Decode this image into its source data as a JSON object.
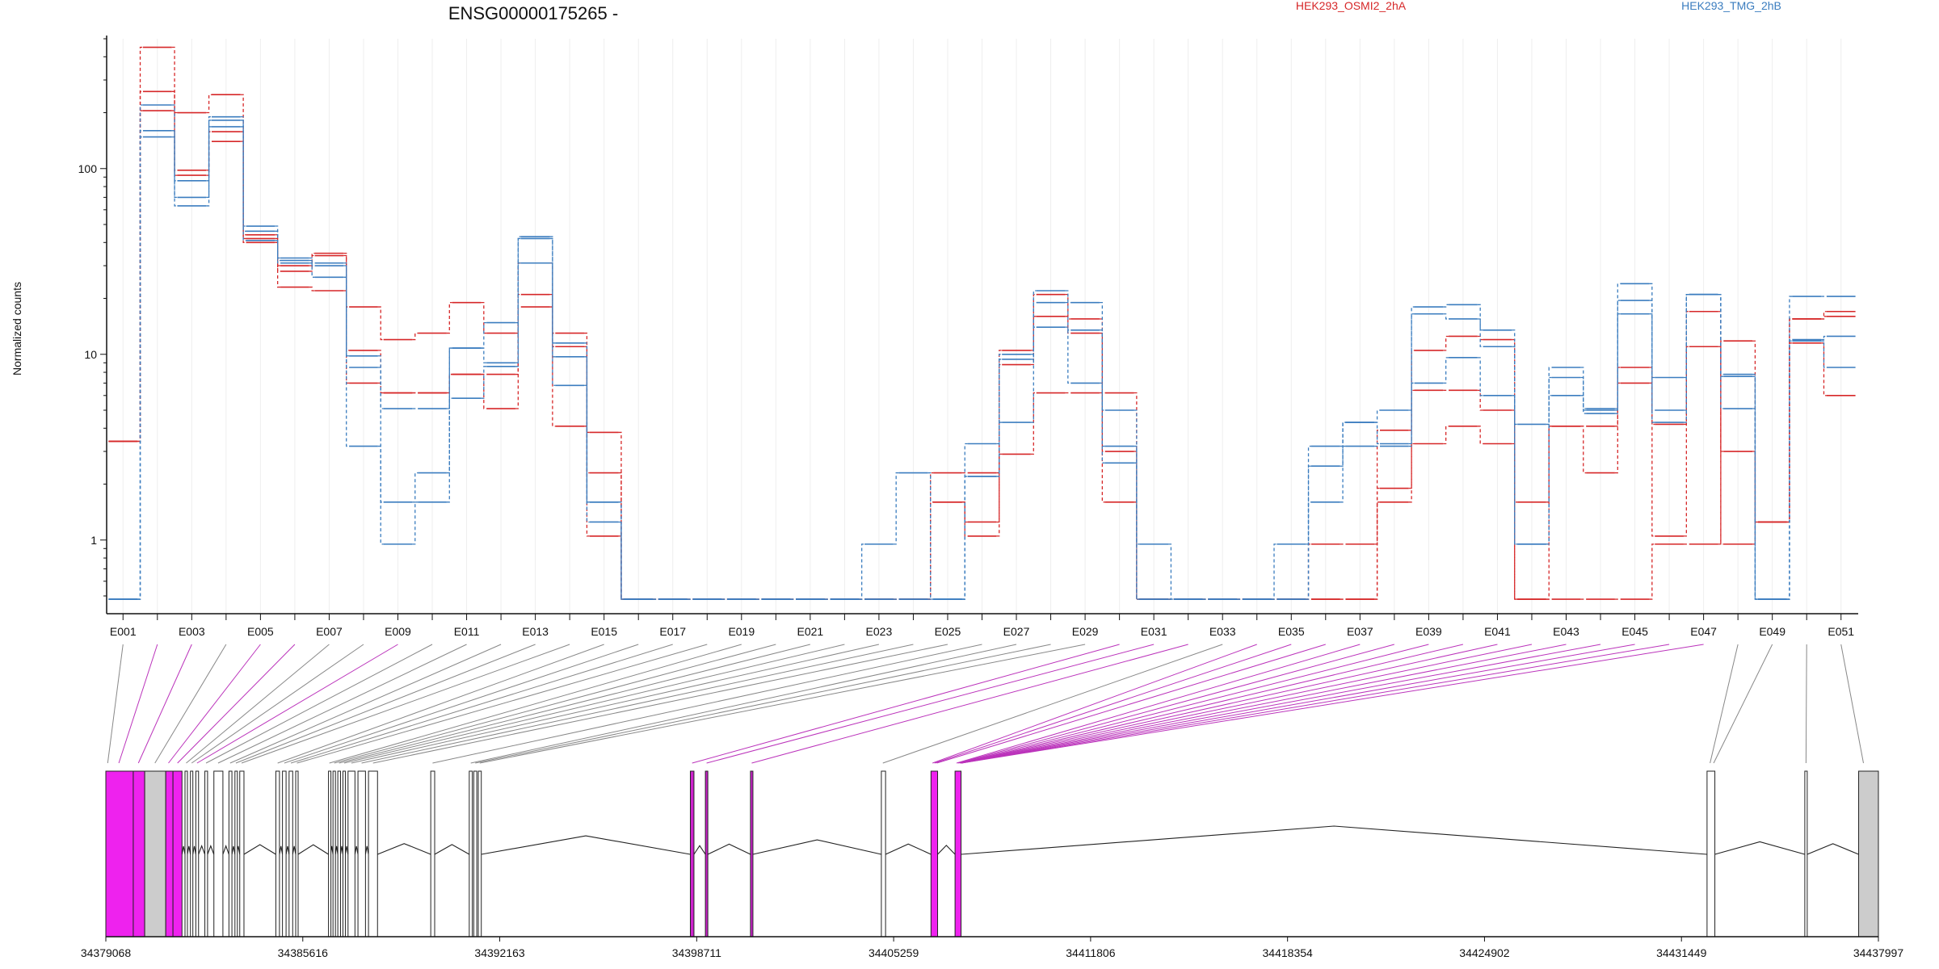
{
  "chart_data": {
    "type": "line",
    "title": "ENSG00000175265 -",
    "ylabel": "Normalized counts",
    "yscale": "log",
    "y_ticks": [
      {
        "value": 1,
        "label": "1"
      },
      {
        "value": 10,
        "label": "10"
      },
      {
        "value": 100,
        "label": "100"
      }
    ],
    "ylim": [
      0.5,
      500
    ],
    "exons": [
      "E001",
      "E002",
      "E003",
      "E004",
      "E005",
      "E006",
      "E007",
      "E008",
      "E009",
      "E010",
      "E011",
      "E012",
      "E013",
      "E014",
      "E015",
      "E016",
      "E017",
      "E018",
      "E019",
      "E020",
      "E021",
      "E022",
      "E023",
      "E024",
      "E025",
      "E026",
      "E027",
      "E028",
      "E029",
      "E030",
      "E031",
      "E032",
      "E033",
      "E034",
      "E035",
      "E036",
      "E037",
      "E038",
      "E039",
      "E040",
      "E041",
      "E042",
      "E043",
      "E044",
      "E045",
      "E046",
      "E047",
      "E048",
      "E049",
      "E050",
      "E051"
    ],
    "exon_labels": [
      "E001",
      "E003",
      "E005",
      "E007",
      "E009",
      "E011",
      "E013",
      "E015",
      "E017",
      "E019",
      "E021",
      "E023",
      "E025",
      "E027",
      "E029",
      "E031",
      "E033",
      "E035",
      "E037",
      "E039",
      "E041",
      "E043",
      "E045",
      "E047",
      "E049",
      "E051"
    ],
    "legend": [
      {
        "name": "HEK293_OSMI2_2hA",
        "color": "#d62728"
      },
      {
        "name": "HEK293_TMG_2hB",
        "color": "#3b7dbf"
      }
    ],
    "series": [
      {
        "group": "OSMI2",
        "color": "#d62728",
        "values": [
          3.4,
          450,
          200,
          250,
          42,
          23,
          22,
          18,
          12,
          13,
          19,
          13,
          21,
          13,
          3.8,
          0.48,
          0.48,
          0.48,
          0.48,
          0.48,
          0.48,
          0.48,
          0.48,
          0.48,
          2.3,
          2.3,
          10.5,
          21,
          15.5,
          6.2,
          0.48,
          0.48,
          0.48,
          0.48,
          0.48,
          0.48,
          0.48,
          3.9,
          10.5,
          12.5,
          12,
          0.48,
          0.48,
          0.48,
          0.48,
          0.95,
          0.95,
          11.8,
          1.25,
          15.5,
          17
        ]
      },
      {
        "group": "OSMI2",
        "color": "#d62728",
        "values": [
          3.4,
          260,
          98,
          158,
          44,
          30,
          35,
          10.5,
          6.2,
          6.2,
          7.8,
          7.8,
          31,
          11,
          1.05,
          0.48,
          0.48,
          0.48,
          0.48,
          0.48,
          0.48,
          0.48,
          0.48,
          0.48,
          1.6,
          1.05,
          2.9,
          6.2,
          6.2,
          1.6,
          0.48,
          0.48,
          0.48,
          0.48,
          0.48,
          0.95,
          0.95,
          1.6,
          3.3,
          4.1,
          3.3,
          1.6,
          4.1,
          2.3,
          8.5,
          1.05,
          17,
          0.95,
          1.25,
          11.5,
          6
        ]
      },
      {
        "group": "OSMI2",
        "color": "#d62728",
        "values": [
          3.4,
          205,
          92,
          140,
          40,
          28,
          34,
          7.0,
          6.2,
          6.2,
          7.8,
          5.1,
          18,
          4.1,
          2.3,
          0.48,
          0.48,
          0.48,
          0.48,
          0.48,
          0.48,
          0.48,
          0.48,
          0.48,
          1.6,
          1.25,
          8.8,
          16,
          13,
          3.0,
          0.48,
          0.48,
          0.48,
          0.48,
          0.48,
          0.48,
          0.48,
          1.9,
          6.4,
          6.4,
          5.0,
          0.48,
          4.1,
          4.1,
          7.0,
          4.2,
          11,
          3.0,
          1.25,
          15.5,
          16
        ]
      },
      {
        "group": "TMG",
        "color": "#3b7dbf",
        "values": [
          0.48,
          220,
          63,
          190,
          46,
          32,
          30,
          3.2,
          0.95,
          1.6,
          10.8,
          9,
          43,
          6.8,
          1.6,
          0.48,
          0.48,
          0.48,
          0.48,
          0.48,
          0.48,
          0.48,
          0.95,
          2.3,
          0.48,
          3.3,
          10,
          22,
          19,
          3.2,
          0.95,
          0.48,
          0.48,
          0.48,
          0.95,
          3.2,
          4.3,
          5.0,
          18,
          18.5,
          13.5,
          4.2,
          8.5,
          5.1,
          24,
          7.5,
          21,
          5.1,
          0.48,
          12,
          8.5
        ]
      },
      {
        "group": "TMG",
        "color": "#3b7dbf",
        "values": [
          0.48,
          148,
          70,
          182,
          49,
          33,
          26,
          8.5,
          5.1,
          5.1,
          10.8,
          14.8,
          31,
          9.7,
          1.25,
          0.48,
          0.48,
          0.48,
          0.48,
          0.48,
          0.48,
          0.48,
          0.48,
          0.48,
          0.48,
          2.2,
          4.3,
          14,
          7.0,
          5.0,
          0.48,
          0.48,
          0.48,
          0.48,
          0.48,
          1.6,
          4.3,
          3.3,
          7.0,
          9.6,
          6.0,
          0.95,
          6.0,
          5.0,
          19.5,
          4.3,
          21,
          7.8,
          0.48,
          11.8,
          12.5
        ]
      },
      {
        "group": "TMG",
        "color": "#3b7dbf",
        "values": [
          0.48,
          160,
          86,
          168,
          41,
          31,
          31,
          9.8,
          1.6,
          2.3,
          5.8,
          8.6,
          42,
          11.5,
          1.6,
          0.48,
          0.48,
          0.48,
          0.48,
          0.48,
          0.48,
          0.48,
          0.48,
          0.48,
          0.48,
          2.2,
          9.4,
          19,
          13.5,
          2.6,
          0.48,
          0.48,
          0.48,
          0.48,
          0.48,
          2.5,
          3.2,
          3.2,
          16.5,
          15.5,
          11,
          0.95,
          7.5,
          4.8,
          16.5,
          5.0,
          21,
          7.6,
          0.48,
          20.5,
          20.5
        ]
      }
    ],
    "genomic_axis": {
      "start": 34379068,
      "end": 34437997,
      "tick_labels": [
        "34379068",
        "34385616",
        "34392163",
        "34398711",
        "34405259",
        "34411806",
        "34418354",
        "34424902",
        "34431449",
        "34437997"
      ]
    },
    "gene_model": [
      {
        "start": 34379068,
        "end": 34379980,
        "fill": "#ee22ee"
      },
      {
        "start": 34379980,
        "end": 34380360,
        "fill": "#ee22ee"
      },
      {
        "start": 34380360,
        "end": 34381060,
        "fill": "#cccccc"
      },
      {
        "start": 34381060,
        "end": 34381300,
        "fill": "#ee22ee"
      },
      {
        "start": 34381300,
        "end": 34381600,
        "fill": "#ee22ee"
      },
      {
        "start": 34381700,
        "end": 34381780,
        "fill": "#ffffff"
      },
      {
        "start": 34381880,
        "end": 34381960,
        "fill": "#ffffff"
      },
      {
        "start": 34382060,
        "end": 34382150,
        "fill": "#ffffff"
      },
      {
        "start": 34382360,
        "end": 34382450,
        "fill": "#ffffff"
      },
      {
        "start": 34382660,
        "end": 34382960,
        "fill": "#ffffff"
      },
      {
        "start": 34383160,
        "end": 34383260,
        "fill": "#ffffff"
      },
      {
        "start": 34383360,
        "end": 34383420,
        "fill": "#ffffff"
      },
      {
        "start": 34383520,
        "end": 34383660,
        "fill": "#ffffff"
      },
      {
        "start": 34384720,
        "end": 34384840,
        "fill": "#ffffff"
      },
      {
        "start": 34384940,
        "end": 34385060,
        "fill": "#ffffff"
      },
      {
        "start": 34385160,
        "end": 34385280,
        "fill": "#ffffff"
      },
      {
        "start": 34385380,
        "end": 34385460,
        "fill": "#ffffff"
      },
      {
        "start": 34386470,
        "end": 34386540,
        "fill": "#ffffff"
      },
      {
        "start": 34386620,
        "end": 34386700,
        "fill": "#ffffff"
      },
      {
        "start": 34386780,
        "end": 34386870,
        "fill": "#ffffff"
      },
      {
        "start": 34386950,
        "end": 34387030,
        "fill": "#ffffff"
      },
      {
        "start": 34387120,
        "end": 34387350,
        "fill": "#ffffff"
      },
      {
        "start": 34387450,
        "end": 34387700,
        "fill": "#ffffff"
      },
      {
        "start": 34387800,
        "end": 34388100,
        "fill": "#ffffff"
      },
      {
        "start": 34389870,
        "end": 34390000,
        "fill": "#ffffff"
      },
      {
        "start": 34391150,
        "end": 34391250,
        "fill": "#ffffff"
      },
      {
        "start": 34391300,
        "end": 34391400,
        "fill": "#ffffff"
      },
      {
        "start": 34391450,
        "end": 34391550,
        "fill": "#ffffff"
      },
      {
        "start": 34398500,
        "end": 34398620,
        "fill": "#cc22cc"
      },
      {
        "start": 34399000,
        "end": 34399080,
        "fill": "#cc22cc"
      },
      {
        "start": 34400500,
        "end": 34400580,
        "fill": "#cc22cc"
      },
      {
        "start": 34404850,
        "end": 34404990,
        "fill": "#ffffff"
      },
      {
        "start": 34406500,
        "end": 34406720,
        "fill": "#ee22ee"
      },
      {
        "start": 34407300,
        "end": 34407500,
        "fill": "#ee22ee"
      },
      {
        "start": 34432300,
        "end": 34432560,
        "fill": "#ffffff"
      },
      {
        "start": 34435550,
        "end": 34435630,
        "fill": "#ffffff"
      },
      {
        "start": 34437340,
        "end": 34437997,
        "fill": "#cccccc"
      }
    ],
    "connectors": [
      {
        "exon": 1,
        "pos": 34379130,
        "color": "#888888"
      },
      {
        "exon": 2,
        "pos": 34379500,
        "color": "#bb33bb"
      },
      {
        "exon": 3,
        "pos": 34380150,
        "color": "#bb33bb"
      },
      {
        "exon": 4,
        "pos": 34380700,
        "color": "#888888"
      },
      {
        "exon": 5,
        "pos": 34381150,
        "color": "#bb33bb"
      },
      {
        "exon": 6,
        "pos": 34381450,
        "color": "#bb33bb"
      },
      {
        "exon": 7,
        "pos": 34381740,
        "color": "#888888"
      },
      {
        "exon": 8,
        "pos": 34381920,
        "color": "#888888"
      },
      {
        "exon": 9,
        "pos": 34382100,
        "color": "#bb33bb"
      },
      {
        "exon": 10,
        "pos": 34382400,
        "color": "#888888"
      },
      {
        "exon": 11,
        "pos": 34382800,
        "color": "#888888"
      },
      {
        "exon": 12,
        "pos": 34383200,
        "color": "#888888"
      },
      {
        "exon": 13,
        "pos": 34383390,
        "color": "#888888"
      },
      {
        "exon": 14,
        "pos": 34383580,
        "color": "#888888"
      },
      {
        "exon": 15,
        "pos": 34384780,
        "color": "#888888"
      },
      {
        "exon": 16,
        "pos": 34385000,
        "color": "#888888"
      },
      {
        "exon": 17,
        "pos": 34385220,
        "color": "#888888"
      },
      {
        "exon": 18,
        "pos": 34385420,
        "color": "#888888"
      },
      {
        "exon": 19,
        "pos": 34386500,
        "color": "#888888"
      },
      {
        "exon": 20,
        "pos": 34386660,
        "color": "#888888"
      },
      {
        "exon": 21,
        "pos": 34386820,
        "color": "#888888"
      },
      {
        "exon": 22,
        "pos": 34386990,
        "color": "#888888"
      },
      {
        "exon": 23,
        "pos": 34387230,
        "color": "#888888"
      },
      {
        "exon": 24,
        "pos": 34387570,
        "color": "#888888"
      },
      {
        "exon": 25,
        "pos": 34387950,
        "color": "#888888"
      },
      {
        "exon": 26,
        "pos": 34389930,
        "color": "#888888"
      },
      {
        "exon": 27,
        "pos": 34391200,
        "color": "#888888"
      },
      {
        "exon": 28,
        "pos": 34391350,
        "color": "#888888"
      },
      {
        "exon": 29,
        "pos": 34391500,
        "color": "#888888"
      },
      {
        "exon": 30,
        "pos": 34398560,
        "color": "#bb33bb"
      },
      {
        "exon": 31,
        "pos": 34399040,
        "color": "#bb33bb"
      },
      {
        "exon": 32,
        "pos": 34400540,
        "color": "#bb33bb"
      },
      {
        "exon": 33,
        "pos": 34404900,
        "color": "#888888"
      },
      {
        "exon": 34,
        "pos": 34406550,
        "color": "#bb33bb"
      },
      {
        "exon": 35,
        "pos": 34406620,
        "color": "#bb33bb"
      },
      {
        "exon": 36,
        "pos": 34406690,
        "color": "#bb33bb"
      },
      {
        "exon": 37,
        "pos": 34407350,
        "color": "#bb33bb"
      },
      {
        "exon": 38,
        "pos": 34407400,
        "color": "#bb33bb"
      },
      {
        "exon": 39,
        "pos": 34407450,
        "color": "#bb33bb"
      },
      {
        "exon": 40,
        "pos": 34407480,
        "color": "#bb33bb"
      },
      {
        "exon": 41,
        "pos": 34407490,
        "color": "#bb33bb"
      },
      {
        "exon": 42,
        "pos": 34407495,
        "color": "#bb33bb"
      },
      {
        "exon": 43,
        "pos": 34407498,
        "color": "#bb33bb"
      },
      {
        "exon": 44,
        "pos": 34407500,
        "color": "#bb33bb"
      },
      {
        "exon": 45,
        "pos": 34407505,
        "color": "#bb33bb"
      },
      {
        "exon": 46,
        "pos": 34407510,
        "color": "#bb33bb"
      },
      {
        "exon": 47,
        "pos": 34407515,
        "color": "#bb33bb"
      },
      {
        "exon": 48,
        "pos": 34432400,
        "color": "#888888"
      },
      {
        "exon": 49,
        "pos": 34432520,
        "color": "#888888"
      },
      {
        "exon": 50,
        "pos": 34435590,
        "color": "#888888"
      },
      {
        "exon": 51,
        "pos": 34437500,
        "color": "#888888"
      }
    ]
  }
}
